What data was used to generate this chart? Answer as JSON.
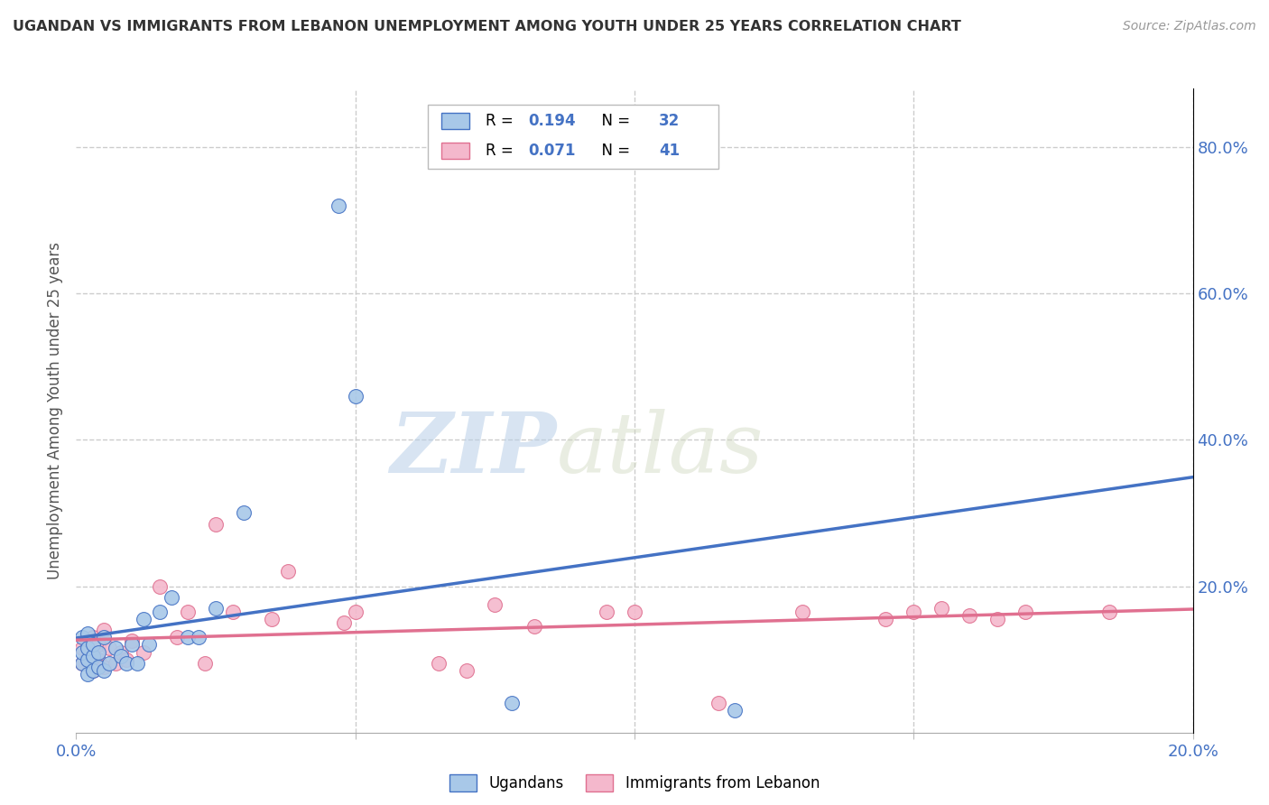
{
  "title": "UGANDAN VS IMMIGRANTS FROM LEBANON UNEMPLOYMENT AMONG YOUTH UNDER 25 YEARS CORRELATION CHART",
  "source": "Source: ZipAtlas.com",
  "ylabel": "Unemployment Among Youth under 25 years",
  "xlim": [
    0.0,
    0.2
  ],
  "ylim": [
    0.0,
    0.88
  ],
  "ytick_labels_right": [
    "80.0%",
    "60.0%",
    "40.0%",
    "20.0%"
  ],
  "ytick_positions_right": [
    0.8,
    0.6,
    0.4,
    0.2
  ],
  "color_ugandan": "#a8c8e8",
  "color_lebanon": "#f4b8cc",
  "color_line_ugandan": "#4472c4",
  "color_line_lebanon": "#e07090",
  "watermark_zip": "ZIP",
  "watermark_atlas": "atlas",
  "background_color": "#ffffff",
  "grid_color": "#cccccc",
  "ugandan_x": [
    0.001,
    0.001,
    0.001,
    0.002,
    0.002,
    0.002,
    0.002,
    0.003,
    0.003,
    0.003,
    0.004,
    0.004,
    0.005,
    0.005,
    0.006,
    0.007,
    0.008,
    0.009,
    0.01,
    0.011,
    0.012,
    0.013,
    0.015,
    0.017,
    0.02,
    0.022,
    0.025,
    0.03,
    0.047,
    0.05,
    0.078,
    0.118
  ],
  "ugandan_y": [
    0.095,
    0.11,
    0.13,
    0.08,
    0.1,
    0.115,
    0.135,
    0.085,
    0.105,
    0.12,
    0.09,
    0.11,
    0.085,
    0.13,
    0.095,
    0.115,
    0.105,
    0.095,
    0.12,
    0.095,
    0.155,
    0.12,
    0.165,
    0.185,
    0.13,
    0.13,
    0.17,
    0.3,
    0.72,
    0.46,
    0.04,
    0.03
  ],
  "lebanon_x": [
    0.001,
    0.001,
    0.002,
    0.002,
    0.003,
    0.003,
    0.004,
    0.004,
    0.005,
    0.005,
    0.006,
    0.007,
    0.008,
    0.009,
    0.01,
    0.012,
    0.015,
    0.018,
    0.02,
    0.023,
    0.025,
    0.028,
    0.035,
    0.038,
    0.048,
    0.05,
    0.065,
    0.07,
    0.075,
    0.082,
    0.095,
    0.1,
    0.115,
    0.13,
    0.145,
    0.15,
    0.155,
    0.16,
    0.165,
    0.17,
    0.185
  ],
  "lebanon_y": [
    0.095,
    0.115,
    0.1,
    0.125,
    0.085,
    0.13,
    0.1,
    0.12,
    0.09,
    0.14,
    0.115,
    0.095,
    0.11,
    0.1,
    0.125,
    0.11,
    0.2,
    0.13,
    0.165,
    0.095,
    0.285,
    0.165,
    0.155,
    0.22,
    0.15,
    0.165,
    0.095,
    0.085,
    0.175,
    0.145,
    0.165,
    0.165,
    0.04,
    0.165,
    0.155,
    0.165,
    0.17,
    0.16,
    0.155,
    0.165,
    0.165
  ]
}
